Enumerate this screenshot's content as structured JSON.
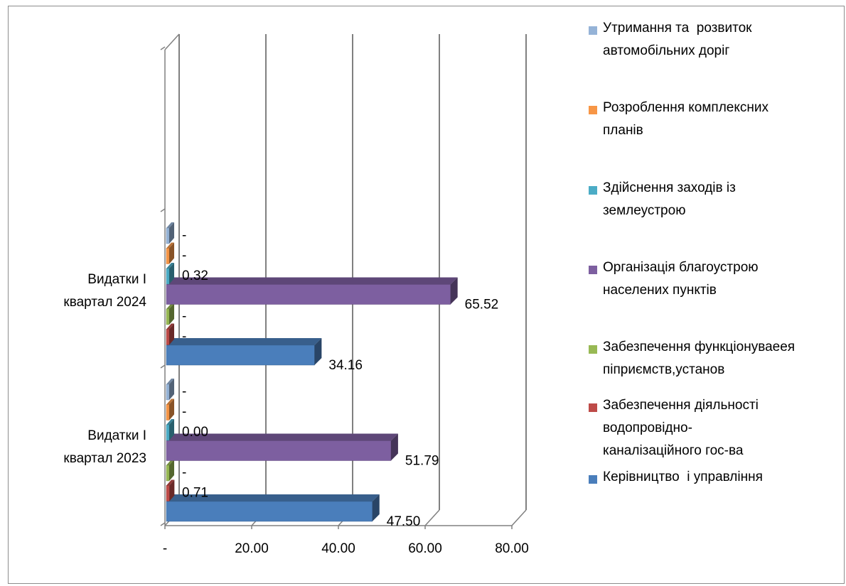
{
  "chart_data": {
    "type": "bar",
    "orientation": "horizontal",
    "three_d": true,
    "categories": [
      "Видатки І квартал 2023",
      "Видатки І квартал 2024"
    ],
    "category_labels": [
      [
        "Видатки І",
        "квартал 2023"
      ],
      [
        "Видатки І",
        "квартал 2024"
      ]
    ],
    "series": [
      {
        "name": "Керівництво  і управління",
        "color": "#4a7ebb",
        "values": [
          47.5,
          34.16
        ],
        "labels": [
          "47.50",
          "34.16"
        ]
      },
      {
        "name": "Забезпечення діяльності водопровідно-каналізаційного гос-ва",
        "legend_lines": [
          "Забезпечення діяльності",
          "водопровідно-",
          "каналізаційного гос-ва"
        ],
        "color": "#be4b48",
        "values": [
          0.71,
          0
        ],
        "labels": [
          "0.71",
          "-"
        ]
      },
      {
        "name": "Забезпечення функціонуваеея підприємств,установ",
        "legend_lines": [
          "Забезпечення функціонуваеея",
          "піприємств,установ"
        ],
        "color": "#98b954",
        "values": [
          0,
          0
        ],
        "labels": [
          "-",
          "-"
        ]
      },
      {
        "name": "Організація благоустрою населених пунктів",
        "legend_lines": [
          "Організація благоустрою",
          "населених пунктів"
        ],
        "color": "#7d5fa0",
        "values": [
          51.79,
          65.52
        ],
        "labels": [
          "51.79",
          "65.52"
        ]
      },
      {
        "name": "Здійснення заходів із землеустрою",
        "legend_lines": [
          "Здійснення заходів із",
          "землеустрою"
        ],
        "color": "#4bacc6",
        "values": [
          0.0,
          0.32
        ],
        "labels": [
          "0.00",
          "0.32"
        ]
      },
      {
        "name": "Розроблення комплексних планів",
        "legend_lines": [
          "Розроблення комплексних",
          "планів"
        ],
        "color": "#f79646",
        "values": [
          0,
          0
        ],
        "labels": [
          "-",
          "-"
        ]
      },
      {
        "name": "Утримання та  розвиток автомобільних доріг",
        "legend_lines": [
          "Утримання та  розвиток",
          "автомобільних доріг"
        ],
        "color": "#95b3d7",
        "values": [
          0,
          0
        ],
        "labels": [
          "-",
          "-"
        ]
      }
    ],
    "xlim": [
      0,
      80
    ],
    "xticks": [
      0,
      20,
      40,
      60,
      80
    ],
    "xtick_labels": [
      "-",
      "20.00",
      "40.00",
      "60.00",
      "80.00"
    ],
    "grid": true,
    "legend_position": "right"
  }
}
